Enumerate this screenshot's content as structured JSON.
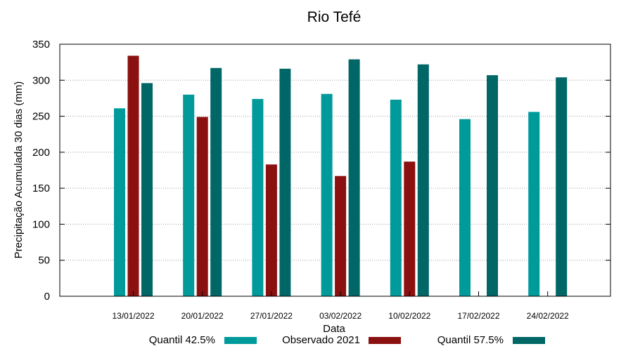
{
  "chart_data": {
    "type": "bar",
    "title": "Rio Tefé",
    "xlabel": "Data",
    "ylabel": "Precipitação Acumulada 30 dias (mm)",
    "ylim": [
      0,
      350
    ],
    "yticks": [
      0,
      50,
      100,
      150,
      200,
      250,
      300,
      350
    ],
    "grid": true,
    "legend": "bottom",
    "categories": [
      "13/01/2022",
      "20/01/2022",
      "27/01/2022",
      "03/02/2022",
      "10/02/2022",
      "17/02/2022",
      "24/02/2022"
    ],
    "series": [
      {
        "name": "Quantil 42.5%",
        "color": "#009a9a",
        "values": [
          261,
          280,
          274,
          281,
          273,
          246,
          256
        ]
      },
      {
        "name": "Observado 2021",
        "color": "#8b1010",
        "values": [
          334,
          249,
          183,
          167,
          187,
          null,
          null
        ]
      },
      {
        "name": "Quantil 57.5%",
        "color": "#006666",
        "values": [
          296,
          317,
          316,
          329,
          322,
          307,
          304
        ]
      }
    ]
  }
}
